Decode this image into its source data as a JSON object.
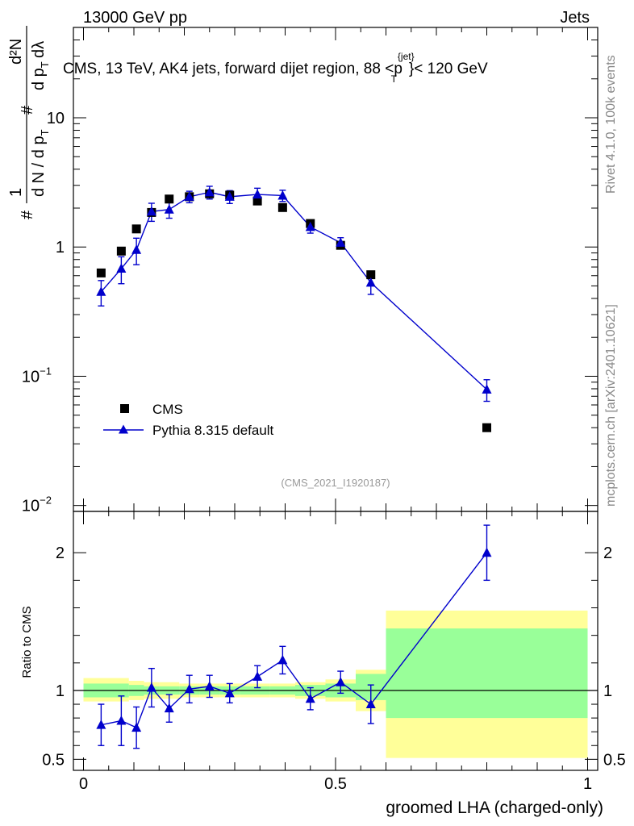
{
  "header": {
    "left": "13000 GeV pp",
    "right": "Jets"
  },
  "side_labels": {
    "rivet": "Rivet 4.1.0,  100k events",
    "mcplots": "mcplots.cern.ch [arXiv:2401.10621]"
  },
  "chart_data": [
    {
      "type": "scatter",
      "panel": "main",
      "title": "CMS, 13 TeV, AK4 jets, forward dijet region, 88 <p",
      "title_sup": "{jet}",
      "title_sub": "T",
      "title_tail": "}< 120 GeV",
      "ylabel_lines": [
        "#",
        "1",
        "d N / d p",
        "T",
        "#",
        "d p",
        "T",
        "d²N",
        "dλ"
      ],
      "yscale": "log",
      "ylim": [
        0.009,
        50
      ],
      "xlim": [
        -0.02,
        1.02
      ],
      "y_ticks": [
        {
          "value": 0.01,
          "base": "10",
          "exp": "−2"
        },
        {
          "value": 0.1,
          "base": "10",
          "exp": "−1"
        },
        {
          "value": 1,
          "base": "1",
          "exp": ""
        },
        {
          "value": 10,
          "base": "10",
          "exp": ""
        }
      ],
      "legend": [
        {
          "name": "CMS",
          "marker": "square",
          "color": "#000000"
        },
        {
          "name": "Pythia 8.315 default",
          "marker": "triangle",
          "color": "#0000cc"
        }
      ],
      "annotation": "(CMS_2021_I1920187)",
      "series": [
        {
          "name": "CMS",
          "x": [
            0.035,
            0.075,
            0.105,
            0.135,
            0.17,
            0.21,
            0.25,
            0.29,
            0.345,
            0.395,
            0.45,
            0.51,
            0.57,
            0.8
          ],
          "y": [
            0.63,
            0.93,
            1.38,
            1.85,
            2.35,
            2.45,
            2.58,
            2.52,
            2.27,
            2.02,
            1.52,
            1.03,
            0.61,
            0.04
          ]
        },
        {
          "name": "Pythia 8.315 default",
          "x": [
            0.035,
            0.075,
            0.105,
            0.135,
            0.17,
            0.21,
            0.25,
            0.29,
            0.345,
            0.395,
            0.45,
            0.51,
            0.57,
            0.8
          ],
          "y": [
            0.45,
            0.68,
            0.95,
            1.88,
            1.95,
            2.45,
            2.65,
            2.45,
            2.55,
            2.5,
            1.43,
            1.08,
            0.53,
            0.079
          ],
          "yerr_low": [
            0.1,
            0.16,
            0.22,
            0.3,
            0.28,
            0.25,
            0.3,
            0.28,
            0.3,
            0.25,
            0.15,
            0.1,
            0.1,
            0.015
          ],
          "yerr_high": [
            0.1,
            0.16,
            0.22,
            0.3,
            0.28,
            0.25,
            0.3,
            0.28,
            0.3,
            0.25,
            0.15,
            0.1,
            0.1,
            0.015
          ]
        }
      ]
    },
    {
      "type": "scatter",
      "panel": "ratio",
      "ylabel": "Ratio to CMS",
      "xlabel": "groomed LHA (charged-only)",
      "xlim": [
        -0.02,
        1.02
      ],
      "ylim": [
        0.42,
        2.3
      ],
      "x_ticks": [
        {
          "value": 0,
          "label": "0"
        },
        {
          "value": 0.5,
          "label": "0.5"
        },
        {
          "value": 1,
          "label": "1"
        }
      ],
      "y_ticks": [
        {
          "value": 0.5,
          "label": "0.5"
        },
        {
          "value": 1,
          "label": "1"
        },
        {
          "value": 2,
          "label": "2"
        }
      ],
      "reference_line": 1,
      "bands": [
        {
          "x0": 0.0,
          "x1": 0.06,
          "yellow": [
            0.92,
            1.09
          ],
          "green": [
            0.95,
            1.05
          ]
        },
        {
          "x0": 0.06,
          "x1": 0.09,
          "yellow": [
            0.92,
            1.09
          ],
          "green": [
            0.95,
            1.05
          ]
        },
        {
          "x0": 0.09,
          "x1": 0.12,
          "yellow": [
            0.93,
            1.07
          ],
          "green": [
            0.96,
            1.04
          ]
        },
        {
          "x0": 0.12,
          "x1": 0.15,
          "yellow": [
            0.94,
            1.06
          ],
          "green": [
            0.97,
            1.03
          ]
        },
        {
          "x0": 0.15,
          "x1": 0.19,
          "yellow": [
            0.94,
            1.06
          ],
          "green": [
            0.97,
            1.03
          ]
        },
        {
          "x0": 0.19,
          "x1": 0.23,
          "yellow": [
            0.95,
            1.05
          ],
          "green": [
            0.97,
            1.03
          ]
        },
        {
          "x0": 0.23,
          "x1": 0.27,
          "yellow": [
            0.95,
            1.05
          ],
          "green": [
            0.97,
            1.03
          ]
        },
        {
          "x0": 0.27,
          "x1": 0.31,
          "yellow": [
            0.95,
            1.05
          ],
          "green": [
            0.97,
            1.03
          ]
        },
        {
          "x0": 0.31,
          "x1": 0.37,
          "yellow": [
            0.95,
            1.05
          ],
          "green": [
            0.97,
            1.03
          ]
        },
        {
          "x0": 0.37,
          "x1": 0.42,
          "yellow": [
            0.95,
            1.05
          ],
          "green": [
            0.97,
            1.03
          ]
        },
        {
          "x0": 0.42,
          "x1": 0.48,
          "yellow": [
            0.94,
            1.06
          ],
          "green": [
            0.96,
            1.04
          ]
        },
        {
          "x0": 0.48,
          "x1": 0.54,
          "yellow": [
            0.92,
            1.08
          ],
          "green": [
            0.95,
            1.05
          ]
        },
        {
          "x0": 0.54,
          "x1": 0.6,
          "yellow": [
            0.85,
            1.15
          ],
          "green": [
            0.93,
            1.12
          ]
        },
        {
          "x0": 0.6,
          "x1": 1.0,
          "yellow": [
            0.51,
            1.58
          ],
          "green": [
            0.8,
            1.45
          ]
        }
      ],
      "series": [
        {
          "name": "Pythia 8.315 default",
          "x": [
            0.035,
            0.075,
            0.105,
            0.135,
            0.17,
            0.21,
            0.25,
            0.29,
            0.345,
            0.395,
            0.45,
            0.51,
            0.57,
            0.8
          ],
          "y": [
            0.75,
            0.78,
            0.73,
            1.02,
            0.87,
            1.01,
            1.03,
            0.98,
            1.1,
            1.22,
            0.94,
            1.06,
            0.9,
            2.0
          ],
          "yerr_low": [
            0.15,
            0.18,
            0.15,
            0.14,
            0.1,
            0.1,
            0.08,
            0.07,
            0.08,
            0.1,
            0.08,
            0.08,
            0.14,
            0.2
          ],
          "yerr_high": [
            0.15,
            0.18,
            0.15,
            0.14,
            0.1,
            0.1,
            0.08,
            0.07,
            0.08,
            0.1,
            0.08,
            0.08,
            0.14,
            0.2
          ]
        }
      ]
    }
  ]
}
